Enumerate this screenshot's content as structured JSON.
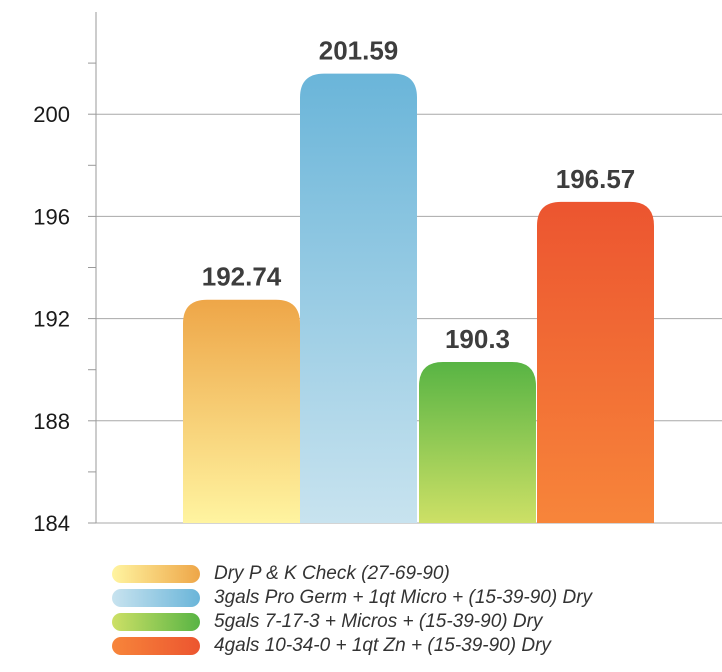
{
  "chart_data": {
    "type": "bar",
    "title": "",
    "xlabel": "",
    "ylabel": "",
    "ylim": [
      184,
      202
    ],
    "yticks": [
      184,
      188,
      192,
      196,
      200
    ],
    "grid": true,
    "legend_position": "bottom",
    "series": [
      {
        "name": "Dry P & K Check (27-69-90)",
        "value": 192.74,
        "value_label": "192.74",
        "color_top": "#eea648",
        "color_bottom": "#fff4a0"
      },
      {
        "name": "3gals Pro Germ + 1qt Micro + (15-39-90) Dry",
        "value": 201.59,
        "value_label": "201.59",
        "color_top": "#6ab5d9",
        "color_bottom": "#c8e3ef"
      },
      {
        "name": "5gals 7-17-3 + Micros + (15-39-90) Dry",
        "value": 190.3,
        "value_label": "190.3",
        "color_top": "#58b444",
        "color_bottom": "#cde066"
      },
      {
        "name": "4gals 10-34-0 + 1qt Zn + (15-39-90) Dry",
        "value": 196.57,
        "value_label": "196.57",
        "color_top": "#ec5530",
        "color_bottom": "#f7853a"
      }
    ]
  }
}
